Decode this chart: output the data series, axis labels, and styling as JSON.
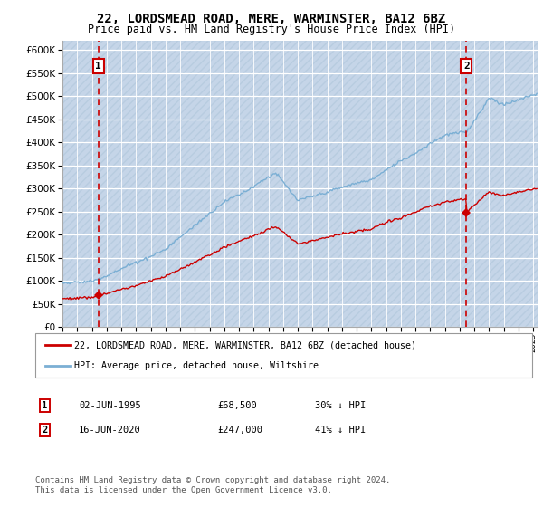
{
  "title": "22, LORDSMEAD ROAD, MERE, WARMINSTER, BA12 6BZ",
  "subtitle": "Price paid vs. HM Land Registry's House Price Index (HPI)",
  "legend_line1": "22, LORDSMEAD ROAD, MERE, WARMINSTER, BA12 6BZ (detached house)",
  "legend_line2": "HPI: Average price, detached house, Wiltshire",
  "transaction1_date": "02-JUN-1995",
  "transaction1_price": "£68,500",
  "transaction1_hpi": "30% ↓ HPI",
  "transaction1_year": 1995.45,
  "transaction1_value": 68500,
  "transaction2_date": "16-JUN-2020",
  "transaction2_price": "£247,000",
  "transaction2_hpi": "41% ↓ HPI",
  "transaction2_year": 2020.46,
  "transaction2_value": 247000,
  "price_color": "#cc0000",
  "hpi_color": "#7bafd4",
  "plot_bg_color": "#dce9f5",
  "hatch_bg_color": "#c5d5e8",
  "ylim": [
    0,
    620000
  ],
  "yticks": [
    0,
    50000,
    100000,
    150000,
    200000,
    250000,
    300000,
    350000,
    400000,
    450000,
    500000,
    550000,
    600000
  ],
  "footnote": "Contains HM Land Registry data © Crown copyright and database right 2024.\nThis data is licensed under the Open Government Licence v3.0.",
  "title_fontsize": 10,
  "subtitle_fontsize": 8.5,
  "footnote_fontsize": 6.5
}
